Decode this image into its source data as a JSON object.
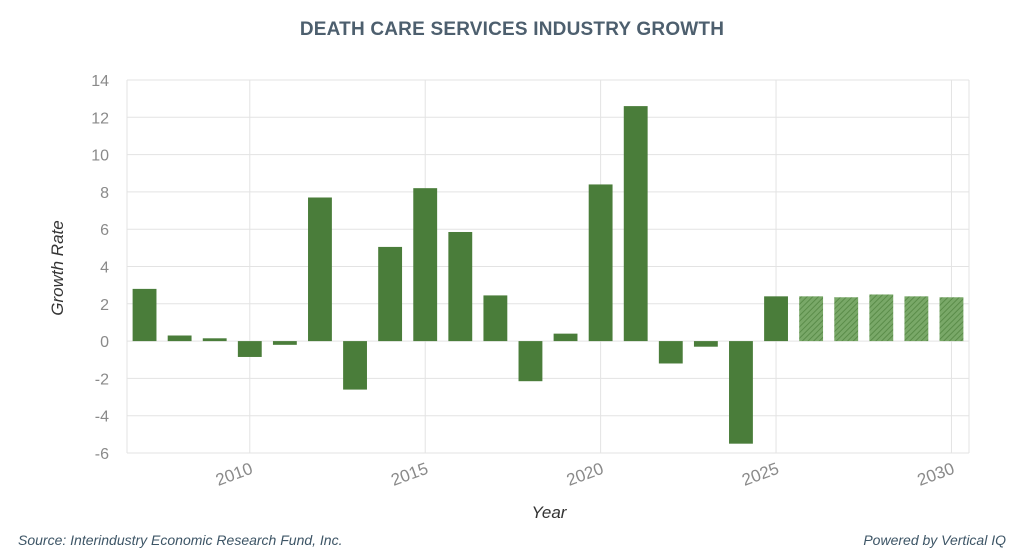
{
  "title": "DEATH CARE SERVICES INDUSTRY GROWTH",
  "source": "Source: Interindustry Economic Research Fund, Inc.",
  "powered_by": "Powered by Vertical IQ",
  "colors": {
    "bar": "#4a7d3a",
    "forecast_bar": "#6f9e5e",
    "grid": "#e3e3e3",
    "tick_label": "#8a8a8a",
    "title": "#4d5f6e"
  },
  "chart_data": {
    "type": "bar",
    "xlabel": "Year",
    "ylabel": "Growth Rate",
    "ylim": [
      -6,
      14
    ],
    "yticks": [
      -6,
      -4,
      -2,
      0,
      2,
      4,
      6,
      8,
      10,
      12,
      14
    ],
    "xticks": [
      2010,
      2015,
      2020,
      2025,
      2030
    ],
    "xlim": [
      2006.5,
      2030.5
    ],
    "grid": true,
    "legend": "none",
    "categories": [
      2007,
      2008,
      2009,
      2010,
      2011,
      2012,
      2013,
      2014,
      2015,
      2016,
      2017,
      2018,
      2019,
      2020,
      2021,
      2022,
      2023,
      2024,
      2025,
      2026,
      2027,
      2028,
      2029,
      2030
    ],
    "values": [
      2.8,
      0.3,
      0.15,
      -0.85,
      -0.2,
      7.7,
      -2.6,
      5.05,
      8.2,
      5.85,
      2.45,
      -2.15,
      0.4,
      8.4,
      12.6,
      -1.2,
      -0.3,
      -5.5,
      2.4,
      2.4,
      2.35,
      2.5,
      2.4,
      2.35
    ],
    "forecast": [
      false,
      false,
      false,
      false,
      false,
      false,
      false,
      false,
      false,
      false,
      false,
      false,
      false,
      false,
      false,
      false,
      false,
      false,
      false,
      true,
      true,
      true,
      true,
      true
    ]
  }
}
